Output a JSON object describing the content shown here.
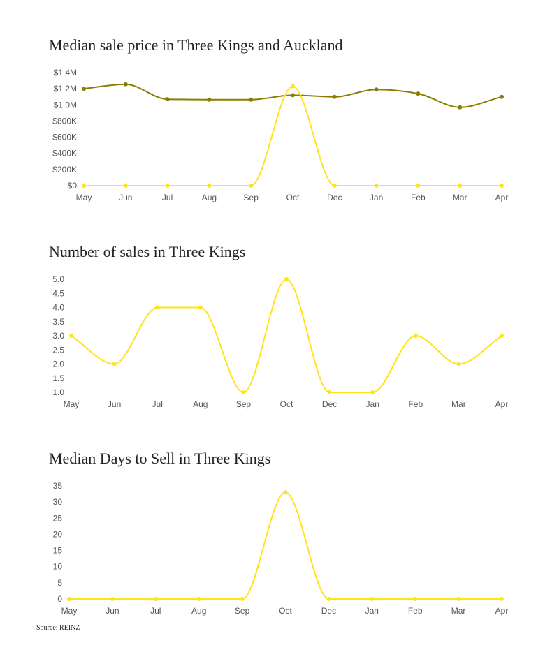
{
  "colors": {
    "three_kings": "#ffe41a",
    "auckland": "#8c7c00"
  },
  "chart_data": [
    {
      "type": "line",
      "title": "Median sale price in Three Kings and Auckland",
      "categories": [
        "May",
        "Jun",
        "Jul",
        "Aug",
        "Sep",
        "Oct",
        "Dec",
        "Jan",
        "Feb",
        "Mar",
        "Apr"
      ],
      "ylim": [
        0,
        1400000
      ],
      "yticks": [
        0,
        200000,
        400000,
        600000,
        800000,
        1000000,
        1200000,
        1400000
      ],
      "ytick_labels": [
        "$0",
        "$200K",
        "$400K",
        "$600K",
        "$800K",
        "$1.0M",
        "$1.2M",
        "$1.4M"
      ],
      "series": [
        {
          "name": "Auckland",
          "color": "#8c7c00",
          "values": [
            1200000,
            1255000,
            1070000,
            1065000,
            1065000,
            1120000,
            1100000,
            1190000,
            1140000,
            970000,
            1100000
          ]
        },
        {
          "name": "Three Kings",
          "color": "#ffe41a",
          "values": [
            0,
            0,
            0,
            0,
            0,
            1230000,
            0,
            0,
            0,
            0,
            0
          ]
        }
      ]
    },
    {
      "type": "line",
      "title": "Number of sales in Three Kings",
      "categories": [
        "May",
        "Jun",
        "Jul",
        "Aug",
        "Sep",
        "Oct",
        "Dec",
        "Jan",
        "Feb",
        "Mar",
        "Apr"
      ],
      "ylim": [
        1,
        5
      ],
      "yticks": [
        1.0,
        1.5,
        2.0,
        2.5,
        3.0,
        3.5,
        4.0,
        4.5,
        5.0
      ],
      "ytick_labels": [
        "1.0",
        "1.5",
        "2.0",
        "2.5",
        "3.0",
        "3.5",
        "4.0",
        "4.5",
        "5.0"
      ],
      "series": [
        {
          "name": "Three Kings",
          "color": "#ffe41a",
          "values": [
            3,
            2,
            4,
            4,
            1,
            5,
            1,
            1,
            3,
            2,
            3
          ]
        }
      ]
    },
    {
      "type": "line",
      "title": "Median Days to Sell in Three Kings",
      "categories": [
        "May",
        "Jun",
        "Jul",
        "Aug",
        "Sep",
        "Oct",
        "Dec",
        "Jan",
        "Feb",
        "Mar",
        "Apr"
      ],
      "ylim": [
        0,
        35
      ],
      "yticks": [
        0,
        5,
        10,
        15,
        20,
        25,
        30,
        35
      ],
      "ytick_labels": [
        "0",
        "5",
        "10",
        "15",
        "20",
        "25",
        "30",
        "35"
      ],
      "series": [
        {
          "name": "Three Kings",
          "color": "#ffe41a",
          "values": [
            0,
            0,
            0,
            0,
            0,
            33,
            0,
            0,
            0,
            0,
            0
          ]
        }
      ]
    }
  ],
  "source": "Source: REINZ"
}
